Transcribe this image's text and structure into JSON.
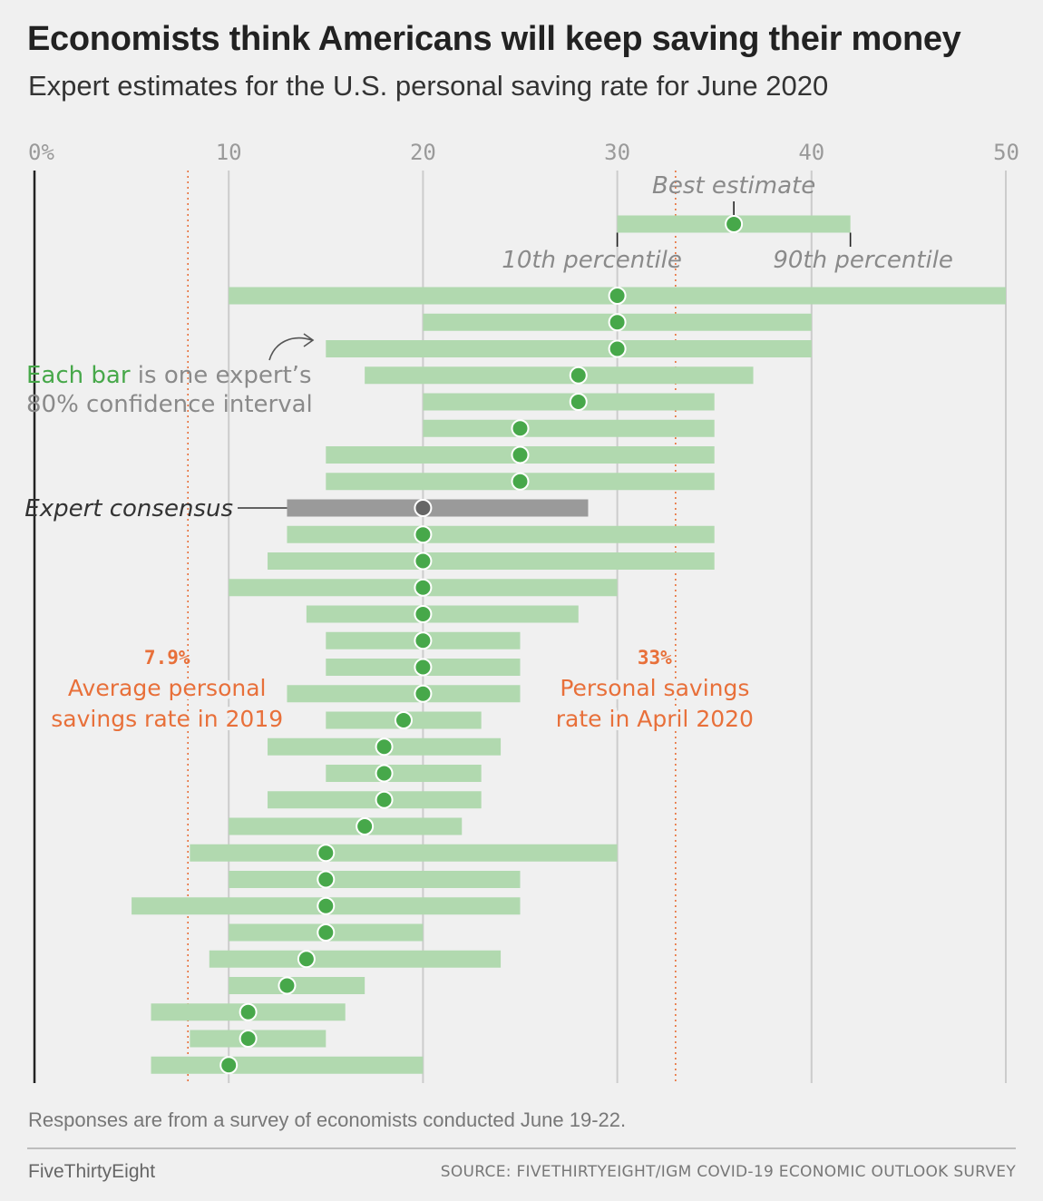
{
  "header": {
    "title": "Economists think Americans will keep saving their money",
    "subtitle": "Expert estimates for the U.S. personal saving rate for June 2020"
  },
  "chart_data": {
    "type": "range-dot",
    "title": "Economists think Americans will keep saving their money",
    "subtitle": "Expert estimates for the U.S. personal saving rate for June 2020",
    "x_ticks": [
      "0%",
      "10",
      "20",
      "30",
      "40",
      "50"
    ],
    "xlim": [
      0,
      50
    ],
    "grid": true,
    "colors": {
      "bar": "#b1d9af",
      "dot": "#47a84a",
      "consensus_bar": "#9a9a9a",
      "consensus_dot": "#666666",
      "reference": "#e8703a",
      "axis": "#222222",
      "grid": "#cccccc"
    },
    "legend_example": {
      "low": 30,
      "best": 36,
      "high": 42,
      "best_label": "Best estimate",
      "low_label": "10th percentile",
      "high_label": "90th percentile"
    },
    "experts": [
      {
        "low": 10,
        "best": 30,
        "high": 50
      },
      {
        "low": 20,
        "best": 30,
        "high": 40
      },
      {
        "low": 15,
        "best": 30,
        "high": 40
      },
      {
        "low": 17,
        "best": 28,
        "high": 37
      },
      {
        "low": 20,
        "best": 28,
        "high": 35
      },
      {
        "low": 20,
        "best": 25,
        "high": 35
      },
      {
        "low": 15,
        "best": 25,
        "high": 35
      },
      {
        "low": 15,
        "best": 25,
        "high": 35
      },
      {
        "low": 13,
        "best": 20,
        "high": 28.5,
        "consensus": true
      },
      {
        "low": 13,
        "best": 20,
        "high": 35
      },
      {
        "low": 12,
        "best": 20,
        "high": 35
      },
      {
        "low": 10,
        "best": 20,
        "high": 30
      },
      {
        "low": 14,
        "best": 20,
        "high": 28
      },
      {
        "low": 15,
        "best": 20,
        "high": 25
      },
      {
        "low": 15,
        "best": 20,
        "high": 25
      },
      {
        "low": 13,
        "best": 20,
        "high": 25
      },
      {
        "low": 15,
        "best": 19,
        "high": 23
      },
      {
        "low": 12,
        "best": 18,
        "high": 24
      },
      {
        "low": 15,
        "best": 18,
        "high": 23
      },
      {
        "low": 12,
        "best": 18,
        "high": 23
      },
      {
        "low": 10,
        "best": 17,
        "high": 22
      },
      {
        "low": 8,
        "best": 15,
        "high": 30
      },
      {
        "low": 10,
        "best": 15,
        "high": 25
      },
      {
        "low": 5,
        "best": 15,
        "high": 25
      },
      {
        "low": 10,
        "best": 15,
        "high": 20
      },
      {
        "low": 9,
        "best": 14,
        "high": 24
      },
      {
        "low": 10,
        "best": 13,
        "high": 17
      },
      {
        "low": 6,
        "best": 11,
        "high": 16
      },
      {
        "low": 8,
        "best": 11,
        "high": 15
      },
      {
        "low": 6,
        "best": 10,
        "high": 20
      }
    ],
    "reference_lines": [
      {
        "value": 7.9,
        "value_label": "7.9%",
        "label": [
          "Average personal",
          "savings rate in 2019"
        ]
      },
      {
        "value": 33,
        "value_label": "33%",
        "label": [
          "Personal savings",
          "rate in April 2020"
        ]
      }
    ],
    "annotations": {
      "bar_note_highlight": "Each bar",
      "bar_note_rest": " is one expert’s",
      "bar_note_line2": "80% confidence interval",
      "consensus": "Expert consensus"
    }
  },
  "footer": {
    "note": "Responses are from a survey of economists conducted June 19-22.",
    "brand": "FiveThirtyEight",
    "source": "SOURCE: FIVETHIRTYEIGHT/IGM COVID-19 ECONOMIC OUTLOOK SURVEY"
  }
}
